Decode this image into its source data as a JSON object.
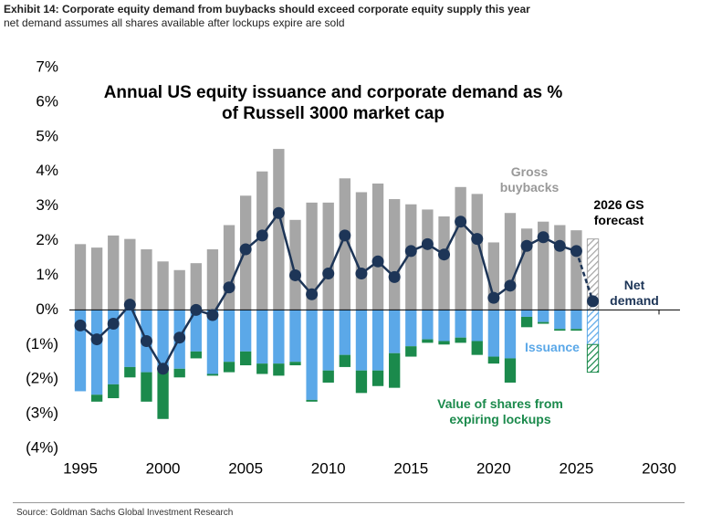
{
  "header": {
    "title": "Exhibit 14: Corporate equity demand from buybacks should exceed corporate equity supply this year",
    "subtitle": "net demand assumes all shares available after lockups expire are sold"
  },
  "chart_data": {
    "type": "combo",
    "title": "Annual US equity issuance and corporate demand as % of Russell 3000 market cap",
    "x": [
      1995,
      1996,
      1997,
      1998,
      1999,
      2000,
      2001,
      2002,
      2003,
      2004,
      2005,
      2006,
      2007,
      2008,
      2009,
      2010,
      2011,
      2012,
      2013,
      2014,
      2015,
      2016,
      2017,
      2018,
      2019,
      2020,
      2021,
      2022,
      2023,
      2024,
      2025,
      2026
    ],
    "forecast_x": 2026,
    "stacked": true,
    "series": [
      {
        "name": "Gross buybacks",
        "type": "bar",
        "color": "#a6a6a6",
        "values": [
          1.9,
          1.8,
          2.15,
          2.05,
          1.75,
          1.4,
          1.15,
          1.35,
          1.75,
          2.45,
          3.3,
          4.0,
          4.65,
          2.6,
          3.1,
          3.1,
          3.8,
          3.4,
          3.65,
          3.2,
          3.05,
          2.9,
          2.7,
          3.55,
          3.35,
          1.95,
          2.8,
          2.35,
          2.55,
          2.45,
          2.3,
          2.05
        ]
      },
      {
        "name": "Issuance",
        "type": "bar",
        "color": "#5ba8e8",
        "values": [
          -2.35,
          -2.45,
          -2.15,
          -1.65,
          -1.8,
          -1.75,
          -1.7,
          -1.2,
          -1.85,
          -1.5,
          -1.2,
          -1.55,
          -1.55,
          -1.5,
          -2.6,
          -1.75,
          -1.3,
          -1.75,
          -1.75,
          -1.25,
          -1.05,
          -0.85,
          -0.9,
          -0.8,
          -0.9,
          -1.35,
          -1.4,
          -0.2,
          -0.35,
          -0.55,
          -0.55,
          -1.0
        ]
      },
      {
        "name": "Value of shares from expiring lockups",
        "type": "bar",
        "color": "#1b8a4c",
        "values": [
          0,
          -0.2,
          -0.4,
          -0.3,
          -0.85,
          -1.4,
          -0.25,
          -0.2,
          -0.05,
          -0.3,
          -0.4,
          -0.3,
          -0.35,
          -0.1,
          -0.05,
          -0.35,
          -0.35,
          -0.65,
          -0.45,
          -1.0,
          -0.3,
          -0.1,
          -0.1,
          -0.15,
          -0.4,
          -0.2,
          -0.7,
          -0.3,
          -0.05,
          -0.05,
          -0.05,
          -0.8
        ]
      },
      {
        "name": "Net demand",
        "type": "line",
        "color": "#1d3557",
        "values": [
          -0.45,
          -0.85,
          -0.4,
          0.15,
          -0.9,
          -1.7,
          -0.8,
          0.0,
          -0.15,
          0.65,
          1.75,
          2.15,
          2.8,
          1.0,
          0.45,
          1.05,
          2.15,
          1.05,
          1.4,
          0.95,
          1.7,
          1.9,
          1.6,
          2.55,
          2.05,
          0.35,
          0.7,
          1.85,
          2.1,
          1.85,
          1.7,
          0.25
        ]
      }
    ],
    "annotations": [
      "2026 GS forecast"
    ],
    "xlim": [
      1995,
      2030
    ],
    "xticks": [
      1995,
      2000,
      2005,
      2010,
      2015,
      2020,
      2025,
      2030
    ],
    "ylim": [
      -4,
      7
    ],
    "yticks": [
      {
        "value": -4,
        "label": "(4%)"
      },
      {
        "value": -3,
        "label": "(3%)"
      },
      {
        "value": -2,
        "label": "(2%)"
      },
      {
        "value": -1,
        "label": "(1%)"
      },
      {
        "value": 0,
        "label": "0%"
      },
      {
        "value": 1,
        "label": "1%"
      },
      {
        "value": 2,
        "label": "2%"
      },
      {
        "value": 3,
        "label": "3%"
      },
      {
        "value": 4,
        "label": "4%"
      },
      {
        "value": 5,
        "label": "5%"
      },
      {
        "value": 6,
        "label": "6%"
      },
      {
        "value": 7,
        "label": "7%"
      }
    ]
  },
  "footer": {
    "source": "Source: Goldman Sachs Global Investment Research"
  }
}
